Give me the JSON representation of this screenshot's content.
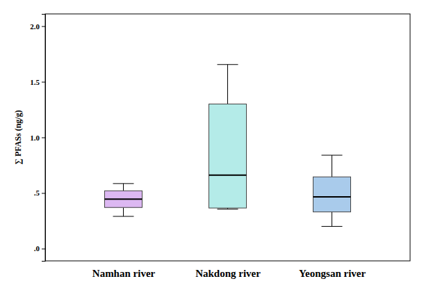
{
  "chart_data": {
    "type": "box",
    "y_label": "∑ PFASs (ng/g)",
    "categories": [
      "Namhan river",
      "Nakdong river",
      "Yeongsan river"
    ],
    "min": [
      0.29,
      0.355,
      0.2
    ],
    "q1": [
      0.37,
      0.365,
      0.33
    ],
    "median": [
      0.445,
      0.66,
      0.465
    ],
    "q3": [
      0.52,
      1.3,
      0.645
    ],
    "max": [
      0.585,
      1.655,
      0.84
    ],
    "colors": [
      "#dcb8f2",
      "#b4ebe8",
      "#a9cbeb"
    ],
    "ylim": [
      -0.11,
      2.11
    ],
    "yticks": [
      {
        "value": 0,
        "label": ".0"
      },
      {
        "value": 0.5,
        "label": ".5"
      },
      {
        "value": 1,
        "label": "1.0"
      },
      {
        "value": 1.5,
        "label": "1.5"
      },
      {
        "value": 2,
        "label": "2.0"
      }
    ],
    "grid": false
  }
}
